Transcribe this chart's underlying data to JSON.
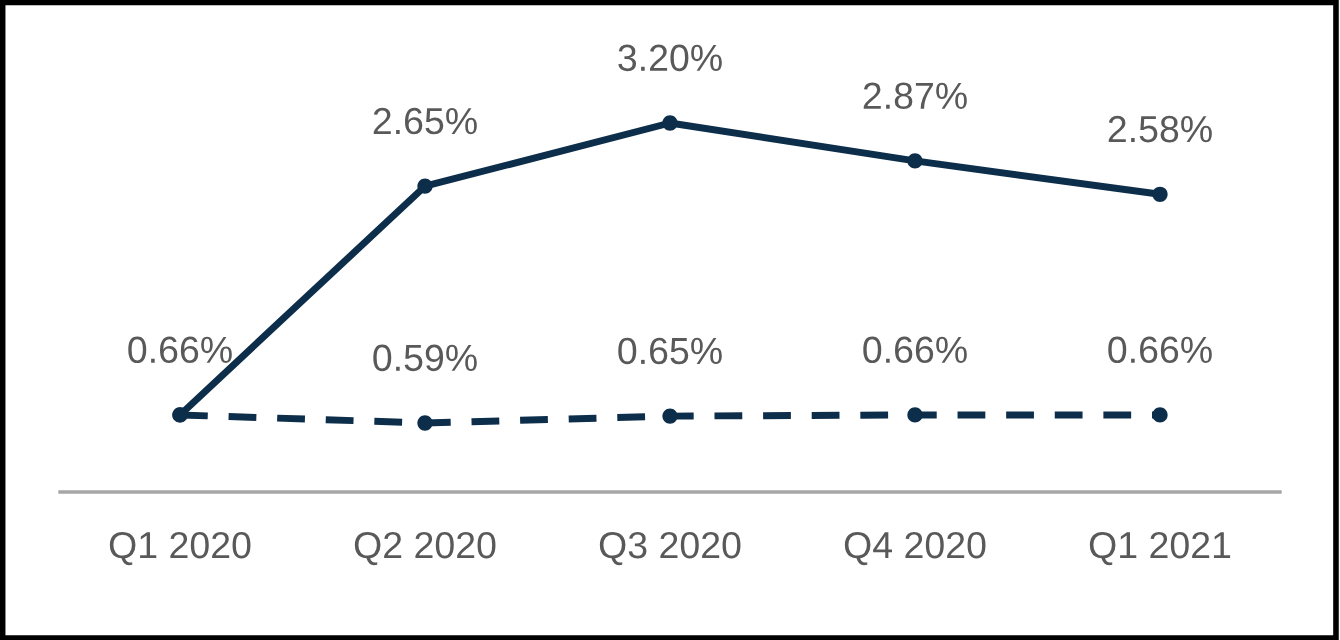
{
  "chart_data": {
    "type": "line",
    "categories": [
      "Q1 2020",
      "Q2 2020",
      "Q3 2020",
      "Q4 2020",
      "Q1 2021"
    ],
    "series": [
      {
        "color": "#0d2e4a",
        "line_style": "solid",
        "values": [
          0.66,
          2.65,
          3.2,
          2.87,
          2.58
        ],
        "value_labels": [
          null,
          "2.65%",
          "3.20%",
          "2.87%",
          "2.58%"
        ]
      },
      {
        "color": "#0d2e4a",
        "line_style": "dashed",
        "values": [
          0.66,
          0.59,
          0.65,
          0.66,
          0.66
        ],
        "value_labels": [
          "0.66%",
          "0.59%",
          "0.65%",
          "0.66%",
          "0.66%"
        ]
      }
    ],
    "tick_labels": "x",
    "marker": "circle",
    "grid": false,
    "legend": false
  }
}
